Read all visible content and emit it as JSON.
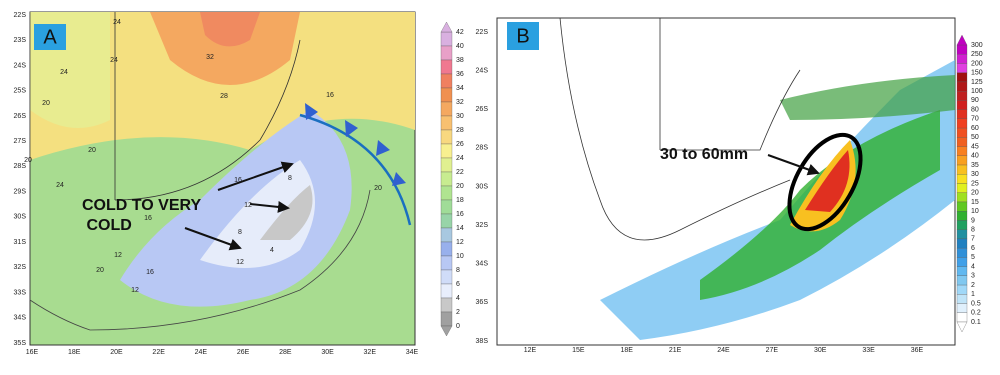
{
  "panels": [
    {
      "label": "A",
      "lat_labels": [
        "22S",
        "23S",
        "24S",
        "25S",
        "26S",
        "27S",
        "28S",
        "29S",
        "30S",
        "31S",
        "32S",
        "33S",
        "34S",
        "35S"
      ],
      "lon_labels": [
        "16E",
        "18E",
        "20E",
        "22E",
        "24E",
        "26E",
        "28E",
        "30E",
        "32E",
        "34E"
      ],
      "annotation": "COLD TO VERY COLD",
      "contour_labels": [
        "24",
        "32",
        "24",
        "24",
        "28",
        "20",
        "20",
        "20",
        "24",
        "16",
        "12",
        "8",
        "12",
        "16",
        "20",
        "16",
        "12",
        "8",
        "4",
        "16",
        "20",
        "12"
      ],
      "colorbar": [
        "42",
        "40",
        "38",
        "36",
        "34",
        "32",
        "30",
        "28",
        "26",
        "24",
        "22",
        "20",
        "18",
        "16",
        "14",
        "12",
        "10",
        "8",
        "6",
        "4",
        "2",
        "0"
      ]
    },
    {
      "label": "B",
      "lat_labels": [
        "22S",
        "24S",
        "26S",
        "28S",
        "30S",
        "32S",
        "34S",
        "36S",
        "38S"
      ],
      "lon_labels": [
        "12E",
        "15E",
        "18E",
        "21E",
        "24E",
        "27E",
        "30E",
        "33E",
        "36E"
      ],
      "annotation": "30 to 60mm",
      "colorbar": [
        "300",
        "250",
        "200",
        "150",
        "125",
        "100",
        "90",
        "80",
        "70",
        "60",
        "50",
        "45",
        "40",
        "35",
        "30",
        "25",
        "20",
        "15",
        "10",
        "9",
        "8",
        "7",
        "6",
        "5",
        "4",
        "3",
        "2",
        "1",
        "0.5",
        "0.2",
        "0.1"
      ]
    }
  ]
}
